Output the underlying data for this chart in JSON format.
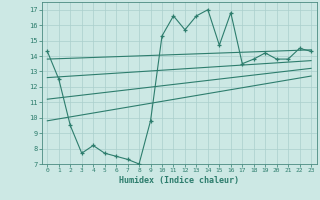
{
  "xlabel": "Humidex (Indice chaleur)",
  "ylabel": "",
  "xlim": [
    -0.5,
    23.5
  ],
  "ylim": [
    7,
    17.5
  ],
  "yticks": [
    7,
    8,
    9,
    10,
    11,
    12,
    13,
    14,
    15,
    16,
    17
  ],
  "xticks": [
    0,
    1,
    2,
    3,
    4,
    5,
    6,
    7,
    8,
    9,
    10,
    11,
    12,
    13,
    14,
    15,
    16,
    17,
    18,
    19,
    20,
    21,
    22,
    23
  ],
  "line_color": "#2d7d6d",
  "bg_color": "#cce8e4",
  "grid_color": "#aacfcc",
  "main_x": [
    0,
    1,
    2,
    3,
    4,
    5,
    6,
    7,
    8,
    9,
    10,
    11,
    12,
    13,
    14,
    15,
    16,
    17,
    18,
    19,
    20,
    21,
    22,
    23
  ],
  "main_y": [
    14.3,
    12.5,
    9.5,
    7.7,
    8.2,
    7.7,
    7.5,
    7.3,
    7.0,
    9.8,
    15.3,
    16.6,
    15.7,
    16.6,
    17.0,
    14.7,
    16.8,
    13.5,
    13.8,
    14.2,
    13.8,
    13.8,
    14.5,
    14.3
  ],
  "trend1_x": [
    0,
    23
  ],
  "trend1_y": [
    13.8,
    14.4
  ],
  "trend2_x": [
    0,
    23
  ],
  "trend2_y": [
    12.6,
    13.7
  ],
  "trend3_x": [
    0,
    23
  ],
  "trend3_y": [
    11.2,
    13.2
  ],
  "trend4_x": [
    0,
    23
  ],
  "trend4_y": [
    9.8,
    12.7
  ]
}
